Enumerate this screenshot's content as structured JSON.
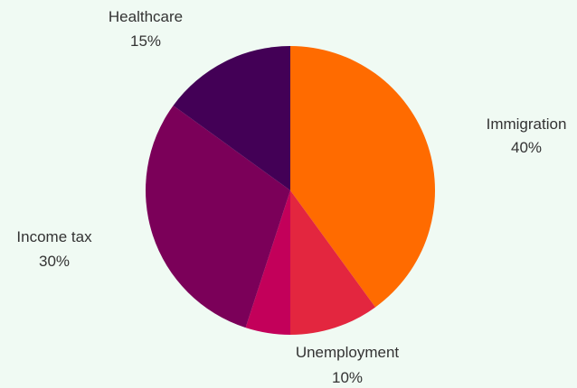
{
  "chart_data": {
    "type": "pie",
    "start_angle": "12 o'clock",
    "direction": "clockwise",
    "slices": [
      {
        "label": "Immigration",
        "value": 40,
        "value_label": "40%",
        "color": "#ff6b00"
      },
      {
        "label": "Unemployment",
        "value": 10,
        "value_label": "10%",
        "color": "#e3263f"
      },
      {
        "label": "",
        "value": 5,
        "value_label": "",
        "color": "#c3005a"
      },
      {
        "label": "Income tax",
        "value": 30,
        "value_label": "30%",
        "color": "#7b0059"
      },
      {
        "label": "Healthcare",
        "value": 15,
        "value_label": "15%",
        "color": "#430056"
      }
    ]
  }
}
